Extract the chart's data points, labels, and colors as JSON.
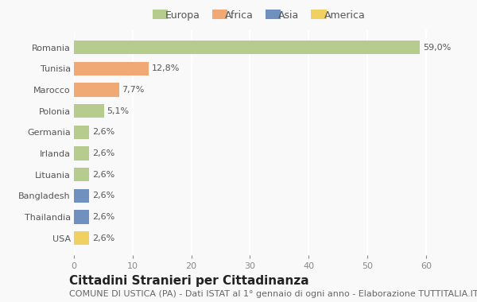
{
  "countries": [
    "Romania",
    "Tunisia",
    "Marocco",
    "Polonia",
    "Germania",
    "Irlanda",
    "Lituania",
    "Bangladesh",
    "Thailandia",
    "USA"
  ],
  "values": [
    59.0,
    12.8,
    7.7,
    5.1,
    2.6,
    2.6,
    2.6,
    2.6,
    2.6,
    2.6
  ],
  "labels": [
    "59,0%",
    "12,8%",
    "7,7%",
    "5,1%",
    "2,6%",
    "2,6%",
    "2,6%",
    "2,6%",
    "2,6%",
    "2,6%"
  ],
  "continents": [
    "Europa",
    "Africa",
    "Africa",
    "Europa",
    "Europa",
    "Europa",
    "Europa",
    "Asia",
    "Asia",
    "America"
  ],
  "colors": {
    "Europa": "#b5cc8e",
    "Africa": "#f0a875",
    "Asia": "#7090c0",
    "America": "#f0d060"
  },
  "legend_order": [
    "Europa",
    "Africa",
    "Asia",
    "America"
  ],
  "xlim": [
    0,
    63
  ],
  "xticks": [
    0,
    10,
    20,
    30,
    40,
    50,
    60
  ],
  "title": "Cittadini Stranieri per Cittadinanza",
  "subtitle": "COMUNE DI USTICA (PA) - Dati ISTAT al 1° gennaio di ogni anno - Elaborazione TUTTITALIA.IT",
  "background_color": "#f9f9f9",
  "bar_height": 0.65,
  "grid_color": "#ffffff",
  "title_fontsize": 11,
  "subtitle_fontsize": 8,
  "label_fontsize": 8,
  "tick_fontsize": 8,
  "legend_fontsize": 9
}
